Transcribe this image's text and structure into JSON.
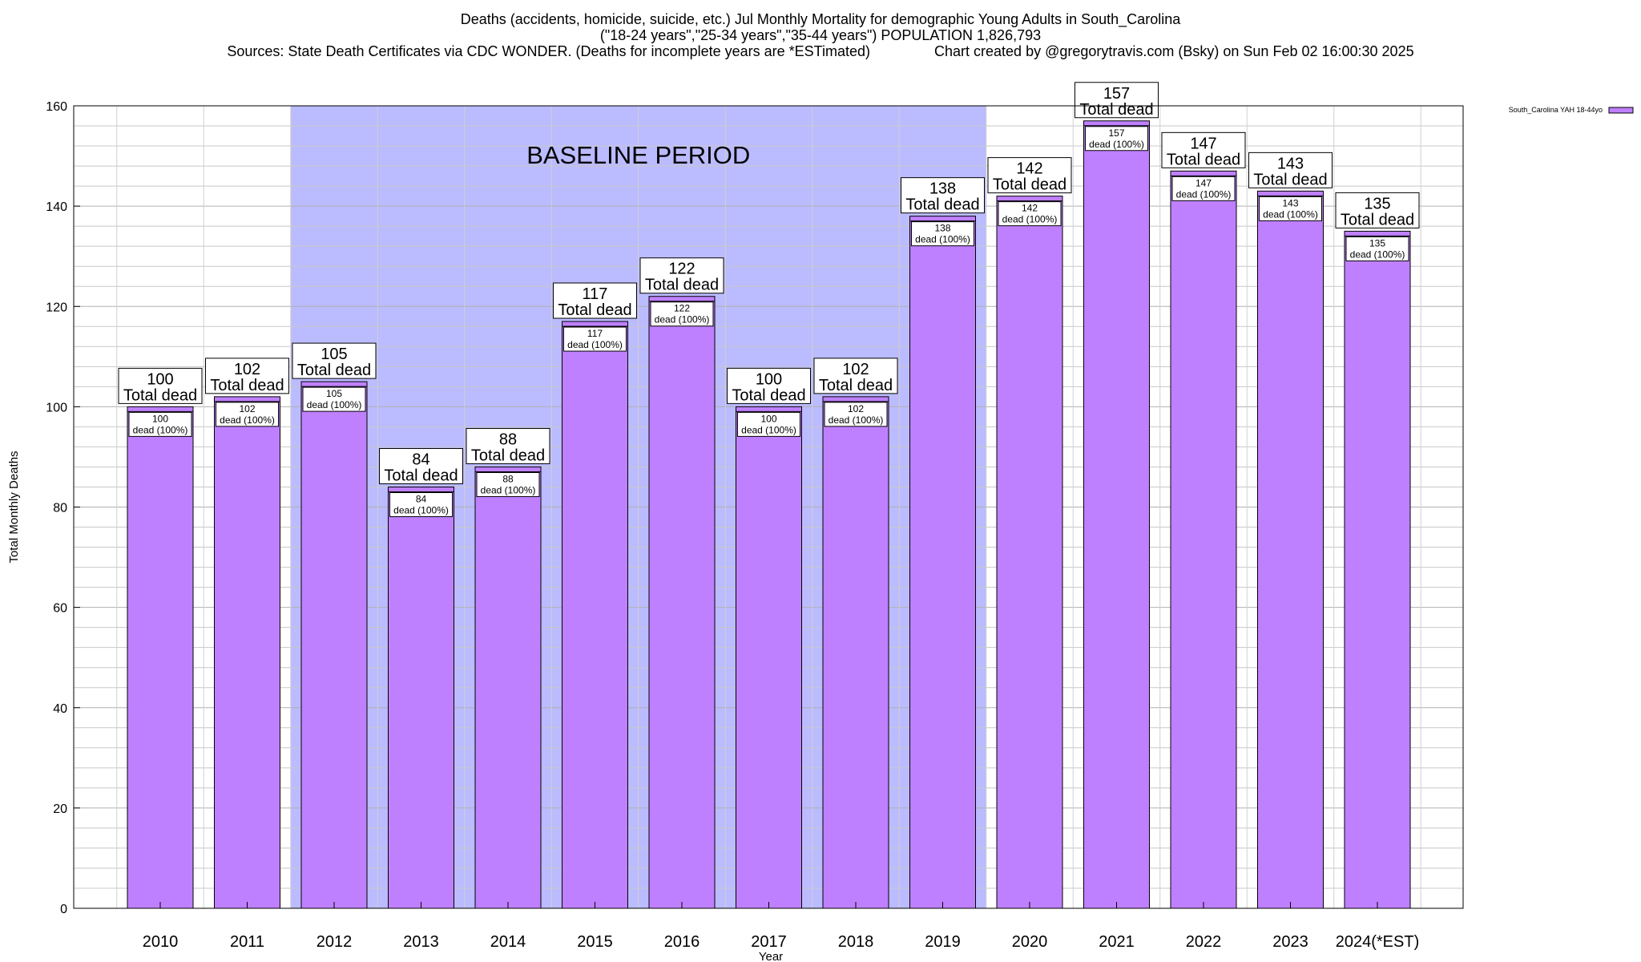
{
  "header": {
    "title_line1": "Deaths (accidents, homicide, suicide, etc.) Jul Monthly Mortality for demographic Young Adults in South_Carolina",
    "title_line2": "(\"18-24 years\",\"25-34 years\",\"35-44 years\") POPULATION 1,826,793",
    "title_line3": "Sources: State Death Certificates via CDC WONDER. (Deaths for incomplete years are *ESTimated)                Chart created by @gregorytravis.com (Bsky) on Sun Feb 02 16:00:30 2025"
  },
  "chart_data": {
    "type": "bar",
    "xlabel": "Year",
    "ylabel": "Total Monthly Deaths",
    "ylim": [
      0,
      160
    ],
    "yticks": [
      0,
      20,
      40,
      60,
      80,
      100,
      120,
      140,
      160
    ],
    "minor_grid_step": 4,
    "grid": true,
    "categories": [
      "2010",
      "2011",
      "2012",
      "2013",
      "2014",
      "2015",
      "2016",
      "2017",
      "2018",
      "2019",
      "2020",
      "2021",
      "2022",
      "2023",
      "2024(*EST)"
    ],
    "series": [
      {
        "name": "South_Carolina YAH 18-44yo",
        "color": "#bf80ff",
        "values": [
          100,
          102,
          105,
          84,
          88,
          117,
          122,
          100,
          102,
          138,
          142,
          157,
          147,
          143,
          135
        ]
      }
    ],
    "total_label_suffix": "Total dead",
    "inner_label_suffix": "dead (100%)",
    "baseline_period": {
      "label": "BASELINE PERIOD",
      "start_category": "2012",
      "end_category": "2019",
      "color": "#bbbbff"
    },
    "legend_position": "top-right"
  }
}
